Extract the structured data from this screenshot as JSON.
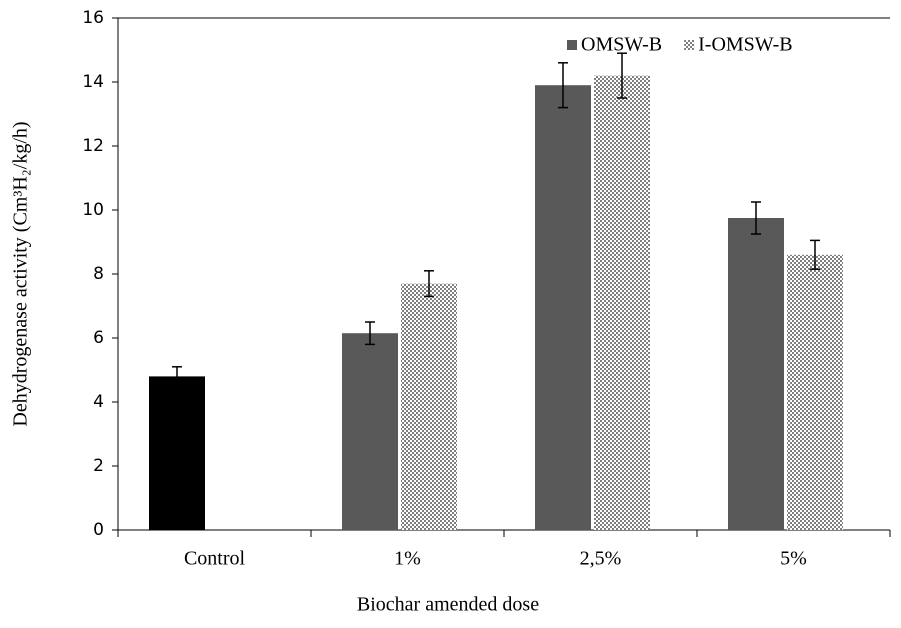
{
  "chart_data": {
    "type": "bar",
    "xlabel": "Biochar amended dose",
    "ylabel": "Dehydrogenase activity (Cm³H₂/kg/h)",
    "categories": [
      "Control",
      "1%",
      "2,5%",
      "5%"
    ],
    "series": [
      {
        "color": "#000000",
        "pattern": "solid",
        "values": [
          4.8,
          null,
          null,
          null
        ],
        "errors": [
          0.3,
          null,
          null,
          null
        ]
      },
      {
        "name": "OMSW-B",
        "color": "#595959",
        "pattern": "solid",
        "values": [
          null,
          6.15,
          13.9,
          9.75
        ],
        "errors": [
          null,
          0.35,
          0.7,
          0.5
        ]
      },
      {
        "name": "I-OMSW-B",
        "color": "#7f7f7f",
        "pattern": "checker",
        "values": [
          null,
          7.7,
          14.2,
          8.6
        ],
        "errors": [
          null,
          0.4,
          0.7,
          0.45
        ]
      }
    ],
    "ylim": [
      0,
      16
    ],
    "yticks": [
      0,
      2,
      4,
      6,
      8,
      10,
      12,
      14,
      16
    ],
    "grid": false,
    "legend": "top-right"
  }
}
